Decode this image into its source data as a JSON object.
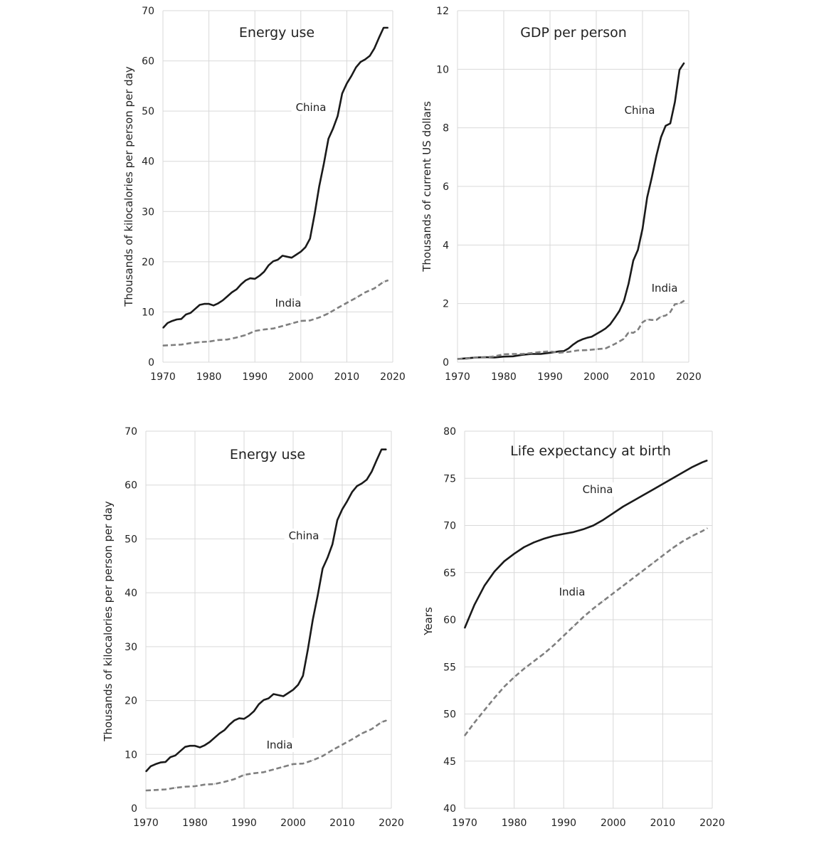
{
  "chart_data": [
    {
      "type": "line",
      "title": "Energy use",
      "xlabel": "",
      "ylabel": "Thousands of kilocalories per person per day",
      "xlim": [
        1970,
        2020
      ],
      "ylim": [
        0,
        70
      ],
      "xticks": [
        1970,
        1980,
        1990,
        2000,
        2010,
        2020
      ],
      "yticks": [
        0,
        10,
        20,
        30,
        40,
        50,
        60,
        70
      ],
      "grid": true,
      "series": [
        {
          "name": "China",
          "style": "solid",
          "color": "#1a1a1a",
          "x": [
            1970,
            1971,
            1972,
            1973,
            1974,
            1975,
            1976,
            1977,
            1978,
            1979,
            1980,
            1981,
            1982,
            1983,
            1984,
            1985,
            1986,
            1987,
            1988,
            1989,
            1990,
            1991,
            1992,
            1993,
            1994,
            1995,
            1996,
            1997,
            1998,
            1999,
            2000,
            2001,
            2002,
            2003,
            2004,
            2005,
            2006,
            2007,
            2008,
            2009,
            2010,
            2011,
            2012,
            2013,
            2014,
            2015,
            2016,
            2017,
            2018,
            2019
          ],
          "y": [
            6.8,
            7.8,
            8.2,
            8.5,
            8.6,
            9.5,
            9.8,
            10.6,
            11.4,
            11.6,
            11.6,
            11.3,
            11.7,
            12.3,
            13.1,
            13.9,
            14.5,
            15.5,
            16.3,
            16.7,
            16.6,
            17.2,
            18.0,
            19.3,
            20.1,
            20.4,
            21.2,
            21.0,
            20.8,
            21.4,
            22.0,
            22.9,
            24.6,
            29.5,
            35.0,
            39.5,
            44.5,
            46.5,
            49.0,
            53.5,
            55.5,
            57.0,
            58.7,
            59.8,
            60.3,
            61.0,
            62.5,
            64.6,
            66.6,
            66.6
          ]
        },
        {
          "name": "India",
          "style": "dashed",
          "color": "#7f7f7f",
          "x": [
            1970,
            1972,
            1974,
            1976,
            1978,
            1980,
            1982,
            1984,
            1986,
            1988,
            1990,
            1992,
            1994,
            1996,
            1998,
            2000,
            2002,
            2004,
            2006,
            2008,
            2010,
            2012,
            2014,
            2016,
            2018,
            2019
          ],
          "y": [
            3.3,
            3.4,
            3.5,
            3.8,
            4.0,
            4.1,
            4.4,
            4.5,
            4.9,
            5.4,
            6.2,
            6.5,
            6.7,
            7.2,
            7.7,
            8.2,
            8.3,
            8.9,
            9.7,
            10.8,
            11.8,
            12.8,
            13.9,
            14.7,
            16.0,
            16.3
          ]
        }
      ],
      "annotations": [
        "China",
        "India"
      ]
    },
    {
      "type": "line",
      "title": "GDP per person",
      "xlabel": "",
      "ylabel": "Thousands of current US dollars",
      "xlim": [
        1970,
        2020
      ],
      "ylim": [
        0,
        12
      ],
      "xticks": [
        1970,
        1980,
        1990,
        2000,
        2010,
        2020
      ],
      "yticks": [
        0,
        2,
        4,
        6,
        8,
        10,
        12
      ],
      "grid": true,
      "series": [
        {
          "name": "China",
          "style": "solid",
          "color": "#1a1a1a",
          "x": [
            1970,
            1972,
            1974,
            1976,
            1978,
            1980,
            1982,
            1984,
            1986,
            1988,
            1990,
            1992,
            1993,
            1994,
            1995,
            1996,
            1997,
            1998,
            1999,
            2000,
            2001,
            2002,
            2003,
            2004,
            2005,
            2006,
            2007,
            2008,
            2009,
            2010,
            2011,
            2012,
            2013,
            2014,
            2015,
            2016,
            2017,
            2018,
            2019
          ],
          "y": [
            0.11,
            0.13,
            0.16,
            0.17,
            0.16,
            0.19,
            0.2,
            0.25,
            0.28,
            0.28,
            0.32,
            0.37,
            0.38,
            0.47,
            0.6,
            0.71,
            0.78,
            0.83,
            0.87,
            0.96,
            1.05,
            1.15,
            1.29,
            1.51,
            1.75,
            2.1,
            2.69,
            3.47,
            3.83,
            4.55,
            5.62,
            6.3,
            7.05,
            7.68,
            8.07,
            8.15,
            8.88,
            9.98,
            10.22
          ]
        },
        {
          "name": "India",
          "style": "dashed",
          "color": "#7f7f7f",
          "x": [
            1970,
            1972,
            1974,
            1976,
            1978,
            1980,
            1982,
            1984,
            1986,
            1988,
            1990,
            1992,
            1994,
            1996,
            1998,
            2000,
            2002,
            2004,
            2006,
            2007,
            2008,
            2009,
            2010,
            2011,
            2012,
            2013,
            2014,
            2015,
            2016,
            2017,
            2018,
            2019
          ],
          "y": [
            0.11,
            0.12,
            0.16,
            0.16,
            0.2,
            0.27,
            0.28,
            0.28,
            0.31,
            0.35,
            0.37,
            0.32,
            0.35,
            0.4,
            0.41,
            0.44,
            0.47,
            0.62,
            0.8,
            1.02,
            1.0,
            1.1,
            1.36,
            1.46,
            1.44,
            1.44,
            1.56,
            1.59,
            1.71,
            1.98,
            2.0,
            2.1
          ]
        }
      ],
      "annotations": [
        "China",
        "India"
      ]
    },
    {
      "type": "line",
      "title": "Energy use",
      "xlabel": "",
      "ylabel": "Thousands of kilocalories per person per day",
      "xlim": [
        1970,
        2020
      ],
      "ylim": [
        0,
        70
      ],
      "xticks": [
        1970,
        1980,
        1990,
        2000,
        2010,
        2020
      ],
      "yticks": [
        0,
        10,
        20,
        30,
        40,
        50,
        60,
        70
      ],
      "grid": true,
      "series": [
        {
          "name": "China",
          "style": "solid",
          "color": "#1a1a1a",
          "x": [
            1970,
            1971,
            1972,
            1973,
            1974,
            1975,
            1976,
            1977,
            1978,
            1979,
            1980,
            1981,
            1982,
            1983,
            1984,
            1985,
            1986,
            1987,
            1988,
            1989,
            1990,
            1991,
            1992,
            1993,
            1994,
            1995,
            1996,
            1997,
            1998,
            1999,
            2000,
            2001,
            2002,
            2003,
            2004,
            2005,
            2006,
            2007,
            2008,
            2009,
            2010,
            2011,
            2012,
            2013,
            2014,
            2015,
            2016,
            2017,
            2018,
            2019
          ],
          "y": [
            6.8,
            7.8,
            8.2,
            8.5,
            8.6,
            9.5,
            9.8,
            10.6,
            11.4,
            11.6,
            11.6,
            11.3,
            11.7,
            12.3,
            13.1,
            13.9,
            14.5,
            15.5,
            16.3,
            16.7,
            16.6,
            17.2,
            18.0,
            19.3,
            20.1,
            20.4,
            21.2,
            21.0,
            20.8,
            21.4,
            22.0,
            22.9,
            24.6,
            29.5,
            35.0,
            39.5,
            44.5,
            46.5,
            49.0,
            53.5,
            55.5,
            57.0,
            58.7,
            59.8,
            60.3,
            61.0,
            62.5,
            64.6,
            66.6,
            66.6
          ]
        },
        {
          "name": "India",
          "style": "dashed",
          "color": "#7f7f7f",
          "x": [
            1970,
            1972,
            1974,
            1976,
            1978,
            1980,
            1982,
            1984,
            1986,
            1988,
            1990,
            1992,
            1994,
            1996,
            1998,
            2000,
            2002,
            2004,
            2006,
            2008,
            2010,
            2012,
            2014,
            2016,
            2018,
            2019
          ],
          "y": [
            3.3,
            3.4,
            3.5,
            3.8,
            4.0,
            4.1,
            4.4,
            4.5,
            4.9,
            5.4,
            6.2,
            6.5,
            6.7,
            7.2,
            7.7,
            8.2,
            8.3,
            8.9,
            9.7,
            10.8,
            11.8,
            12.8,
            13.9,
            14.7,
            16.0,
            16.3
          ]
        }
      ],
      "annotations": [
        "China",
        "India"
      ]
    },
    {
      "type": "line",
      "title": "Life expectancy at birth",
      "xlabel": "",
      "ylabel": "Years",
      "xlim": [
        1970,
        2020
      ],
      "ylim": [
        40,
        80
      ],
      "xticks": [
        1970,
        1980,
        1990,
        2000,
        2010,
        2020
      ],
      "yticks": [
        40,
        45,
        50,
        55,
        60,
        65,
        70,
        75,
        80
      ],
      "grid": true,
      "series": [
        {
          "name": "China",
          "style": "solid",
          "color": "#1a1a1a",
          "x": [
            1970,
            1972,
            1974,
            1976,
            1978,
            1980,
            1982,
            1984,
            1986,
            1988,
            1990,
            1992,
            1994,
            1996,
            1998,
            2000,
            2002,
            2004,
            2006,
            2008,
            2010,
            2012,
            2014,
            2016,
            2018,
            2019
          ],
          "y": [
            59.1,
            61.6,
            63.6,
            65.1,
            66.2,
            67.0,
            67.7,
            68.2,
            68.6,
            68.9,
            69.1,
            69.3,
            69.6,
            70.0,
            70.6,
            71.3,
            72.0,
            72.6,
            73.2,
            73.8,
            74.4,
            75.0,
            75.6,
            76.2,
            76.7,
            76.9
          ]
        },
        {
          "name": "India",
          "style": "dashed",
          "color": "#7f7f7f",
          "x": [
            1970,
            1972,
            1974,
            1976,
            1978,
            1980,
            1982,
            1984,
            1986,
            1988,
            1990,
            1992,
            1994,
            1996,
            1998,
            2000,
            2002,
            2004,
            2006,
            2008,
            2010,
            2012,
            2014,
            2016,
            2018,
            2019
          ],
          "y": [
            47.7,
            49.1,
            50.4,
            51.7,
            52.9,
            53.9,
            54.8,
            55.6,
            56.4,
            57.3,
            58.3,
            59.3,
            60.3,
            61.2,
            62.0,
            62.8,
            63.6,
            64.4,
            65.2,
            66.0,
            66.8,
            67.6,
            68.3,
            68.9,
            69.4,
            69.7
          ]
        }
      ],
      "annotations": [
        "China",
        "India"
      ]
    }
  ]
}
